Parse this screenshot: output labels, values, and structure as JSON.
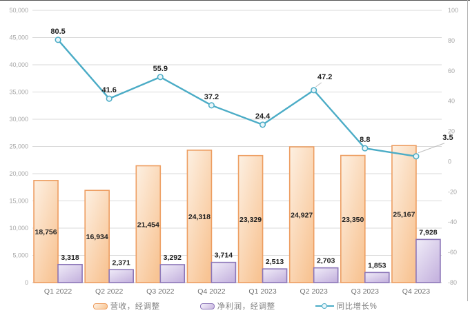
{
  "chart_data": {
    "type": "combo",
    "title": "",
    "categories": [
      "Q1 2022",
      "Q2 2022",
      "Q3 2022",
      "Q4 2022",
      "Q1 2023",
      "Q2 2023",
      "Q3 2023",
      "Q4 2023"
    ],
    "series": [
      {
        "name": "营收，经调整",
        "type": "bar",
        "axis": "left",
        "values": [
          18756,
          16934,
          21454,
          24318,
          23329,
          24927,
          23350,
          25167
        ],
        "data_labels": [
          "18,756",
          "16,934",
          "21,454",
          "24,318",
          "23,329",
          "24,927",
          "23,350",
          "25,167"
        ]
      },
      {
        "name": "净利润，经调整",
        "type": "bar",
        "axis": "left",
        "values": [
          3318,
          2371,
          3292,
          3714,
          2513,
          2703,
          1853,
          7928
        ],
        "data_labels": [
          "3,318",
          "2,371",
          "3,292",
          "3,714",
          "2,513",
          "2,703",
          "1,853",
          "7,928"
        ]
      },
      {
        "name": "同比增长%",
        "type": "line",
        "axis": "right",
        "values": [
          80.5,
          41.6,
          55.9,
          37.2,
          24.4,
          47.2,
          8.8,
          3.5
        ],
        "data_labels": [
          "80.5",
          "41.6",
          "55.9",
          "37.2",
          "24.4",
          "47.2",
          "8.8",
          "3.5"
        ],
        "label_offsets": {
          "5": [
            16,
            -16
          ],
          "7": [
            46,
            -24
          ]
        }
      }
    ],
    "left_axis": {
      "min": 0,
      "max": 50000,
      "step": 5000,
      "tick_labels": [
        "0",
        "5,000",
        "10,000",
        "15,000",
        "20,000",
        "25,000",
        "30,000",
        "35,000",
        "40,000",
        "45,000",
        "50,000"
      ]
    },
    "right_axis": {
      "min": -80,
      "max": 100,
      "step": 20,
      "tick_labels": [
        "-80",
        "-60",
        "-40",
        "-20",
        "0",
        "20",
        "40",
        "60",
        "80",
        "100"
      ]
    },
    "grid": true,
    "legend_position": "bottom",
    "colors": {
      "revenue_fill_light": "#FDF0E2",
      "revenue_fill_dark": "#F8C494",
      "revenue_border": "#ED9D60",
      "profit_fill_light": "#F0ECF8",
      "profit_fill_dark": "#C6B4DF",
      "profit_border": "#8C76B8",
      "line": "#4BACC6",
      "marker_fill": "#EAF6FA",
      "gridline": "#D9D9D9",
      "axis_line": "#BFBFBF",
      "axis_text": "#A6A6A6",
      "category_text": "#737373",
      "data_label_text": "#1F1F1F",
      "leader_line": "#BFBFBF"
    }
  }
}
